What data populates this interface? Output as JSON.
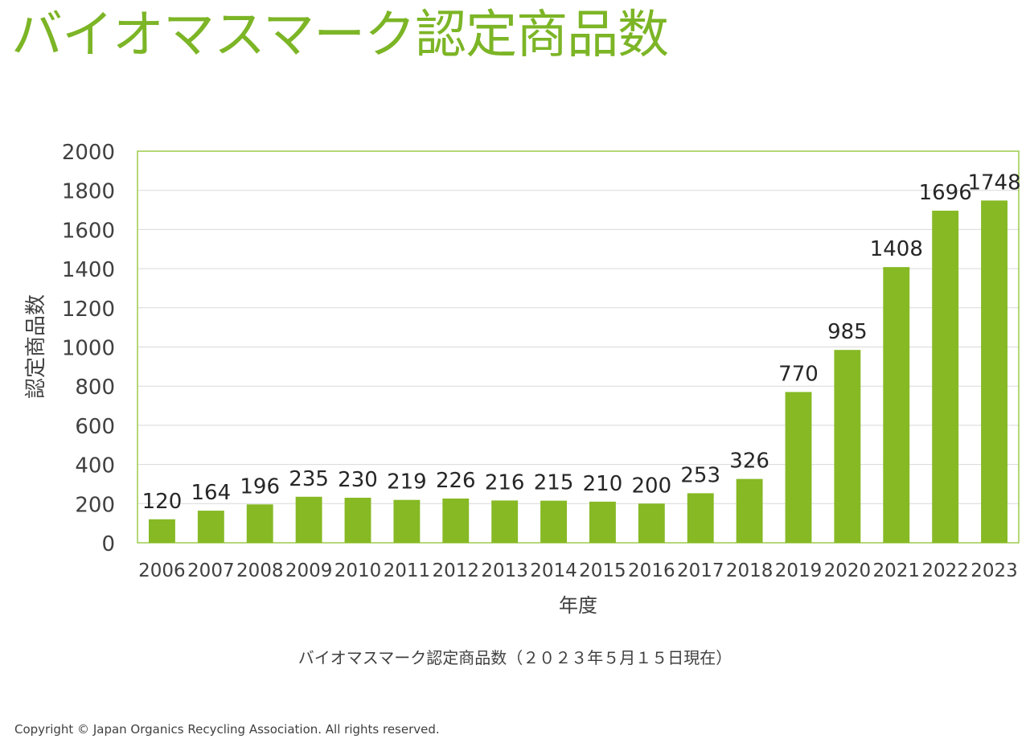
{
  "title": "バイオマスマーク認定商品数",
  "caption": "バイオマスマーク認定商品数（２０２３年５月１５日現在）",
  "copyright": "Copyright © Japan Organics Recycling Association. All rights reserved.",
  "colors": {
    "title": "#7cb526",
    "bar": "#86b924",
    "frame": "#9ccc4c",
    "grid": "#d9d9d9",
    "text": "#404040"
  },
  "chart_data": {
    "type": "bar",
    "categories": [
      "2006",
      "2007",
      "2008",
      "2009",
      "2010",
      "2011",
      "2012",
      "2013",
      "2014",
      "2015",
      "2016",
      "2017",
      "2018",
      "2019",
      "2020",
      "2021",
      "2022",
      "2023"
    ],
    "values": [
      120,
      164,
      196,
      235,
      230,
      219,
      226,
      216,
      215,
      210,
      200,
      253,
      326,
      770,
      985,
      1408,
      1696,
      1748
    ],
    "xlabel": "年度",
    "ylabel": "認定商品数",
    "ylim": [
      0,
      2000
    ],
    "yticks": [
      0,
      200,
      400,
      600,
      800,
      1000,
      1200,
      1400,
      1600,
      1800,
      2000
    ],
    "grid": true,
    "data_labels": true
  }
}
